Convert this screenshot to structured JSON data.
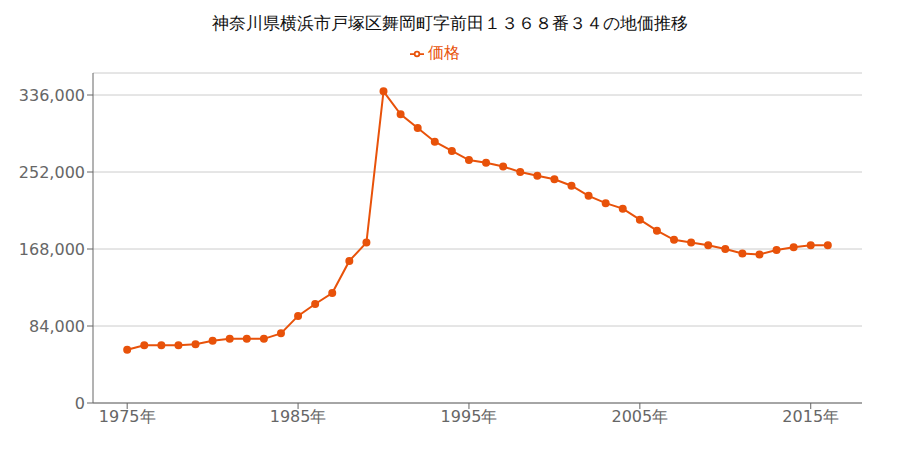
{
  "chart_data": {
    "type": "line",
    "title": "神奈川県横浜市戸塚区舞岡町字前田１３６８番３４の地価推移",
    "x": [
      1975,
      1976,
      1977,
      1978,
      1979,
      1980,
      1981,
      1982,
      1983,
      1984,
      1985,
      1986,
      1987,
      1988,
      1989,
      1990,
      1991,
      1992,
      1993,
      1994,
      1995,
      1996,
      1997,
      1998,
      1999,
      2000,
      2001,
      2002,
      2003,
      2004,
      2005,
      2006,
      2007,
      2008,
      2009,
      2010,
      2011,
      2012,
      2013,
      2014,
      2015,
      2016
    ],
    "series": [
      {
        "name": "価格",
        "color": "#E8520A",
        "marker": "circle",
        "values": [
          58000,
          63000,
          63000,
          63000,
          64000,
          68000,
          70000,
          70000,
          70000,
          76000,
          95000,
          108000,
          120000,
          155000,
          175000,
          340000,
          315000,
          300000,
          285000,
          275000,
          265000,
          262000,
          258000,
          252000,
          248000,
          244000,
          237000,
          226000,
          218000,
          212000,
          200000,
          188000,
          178000,
          175000,
          172000,
          168000,
          163000,
          162000,
          167000,
          170000,
          172000,
          172000
        ]
      }
    ],
    "xlim": [
      1973,
      2018
    ],
    "xticks": [
      {
        "value": 1975,
        "label": "1975年"
      },
      {
        "value": 1985,
        "label": "1985年"
      },
      {
        "value": 1995,
        "label": "1995年"
      },
      {
        "value": 2005,
        "label": "2005年"
      },
      {
        "value": 2015,
        "label": "2015年"
      }
    ],
    "ylim": [
      0,
      360000
    ],
    "yticks": [
      0,
      {
        "value": 84000,
        "label": "84,000"
      },
      {
        "value": 168000,
        "label": "168,000"
      },
      {
        "value": 252000,
        "label": "252,000"
      },
      {
        "value": 336000,
        "label": "336,000"
      }
    ],
    "grid": "y",
    "legend": "top"
  }
}
